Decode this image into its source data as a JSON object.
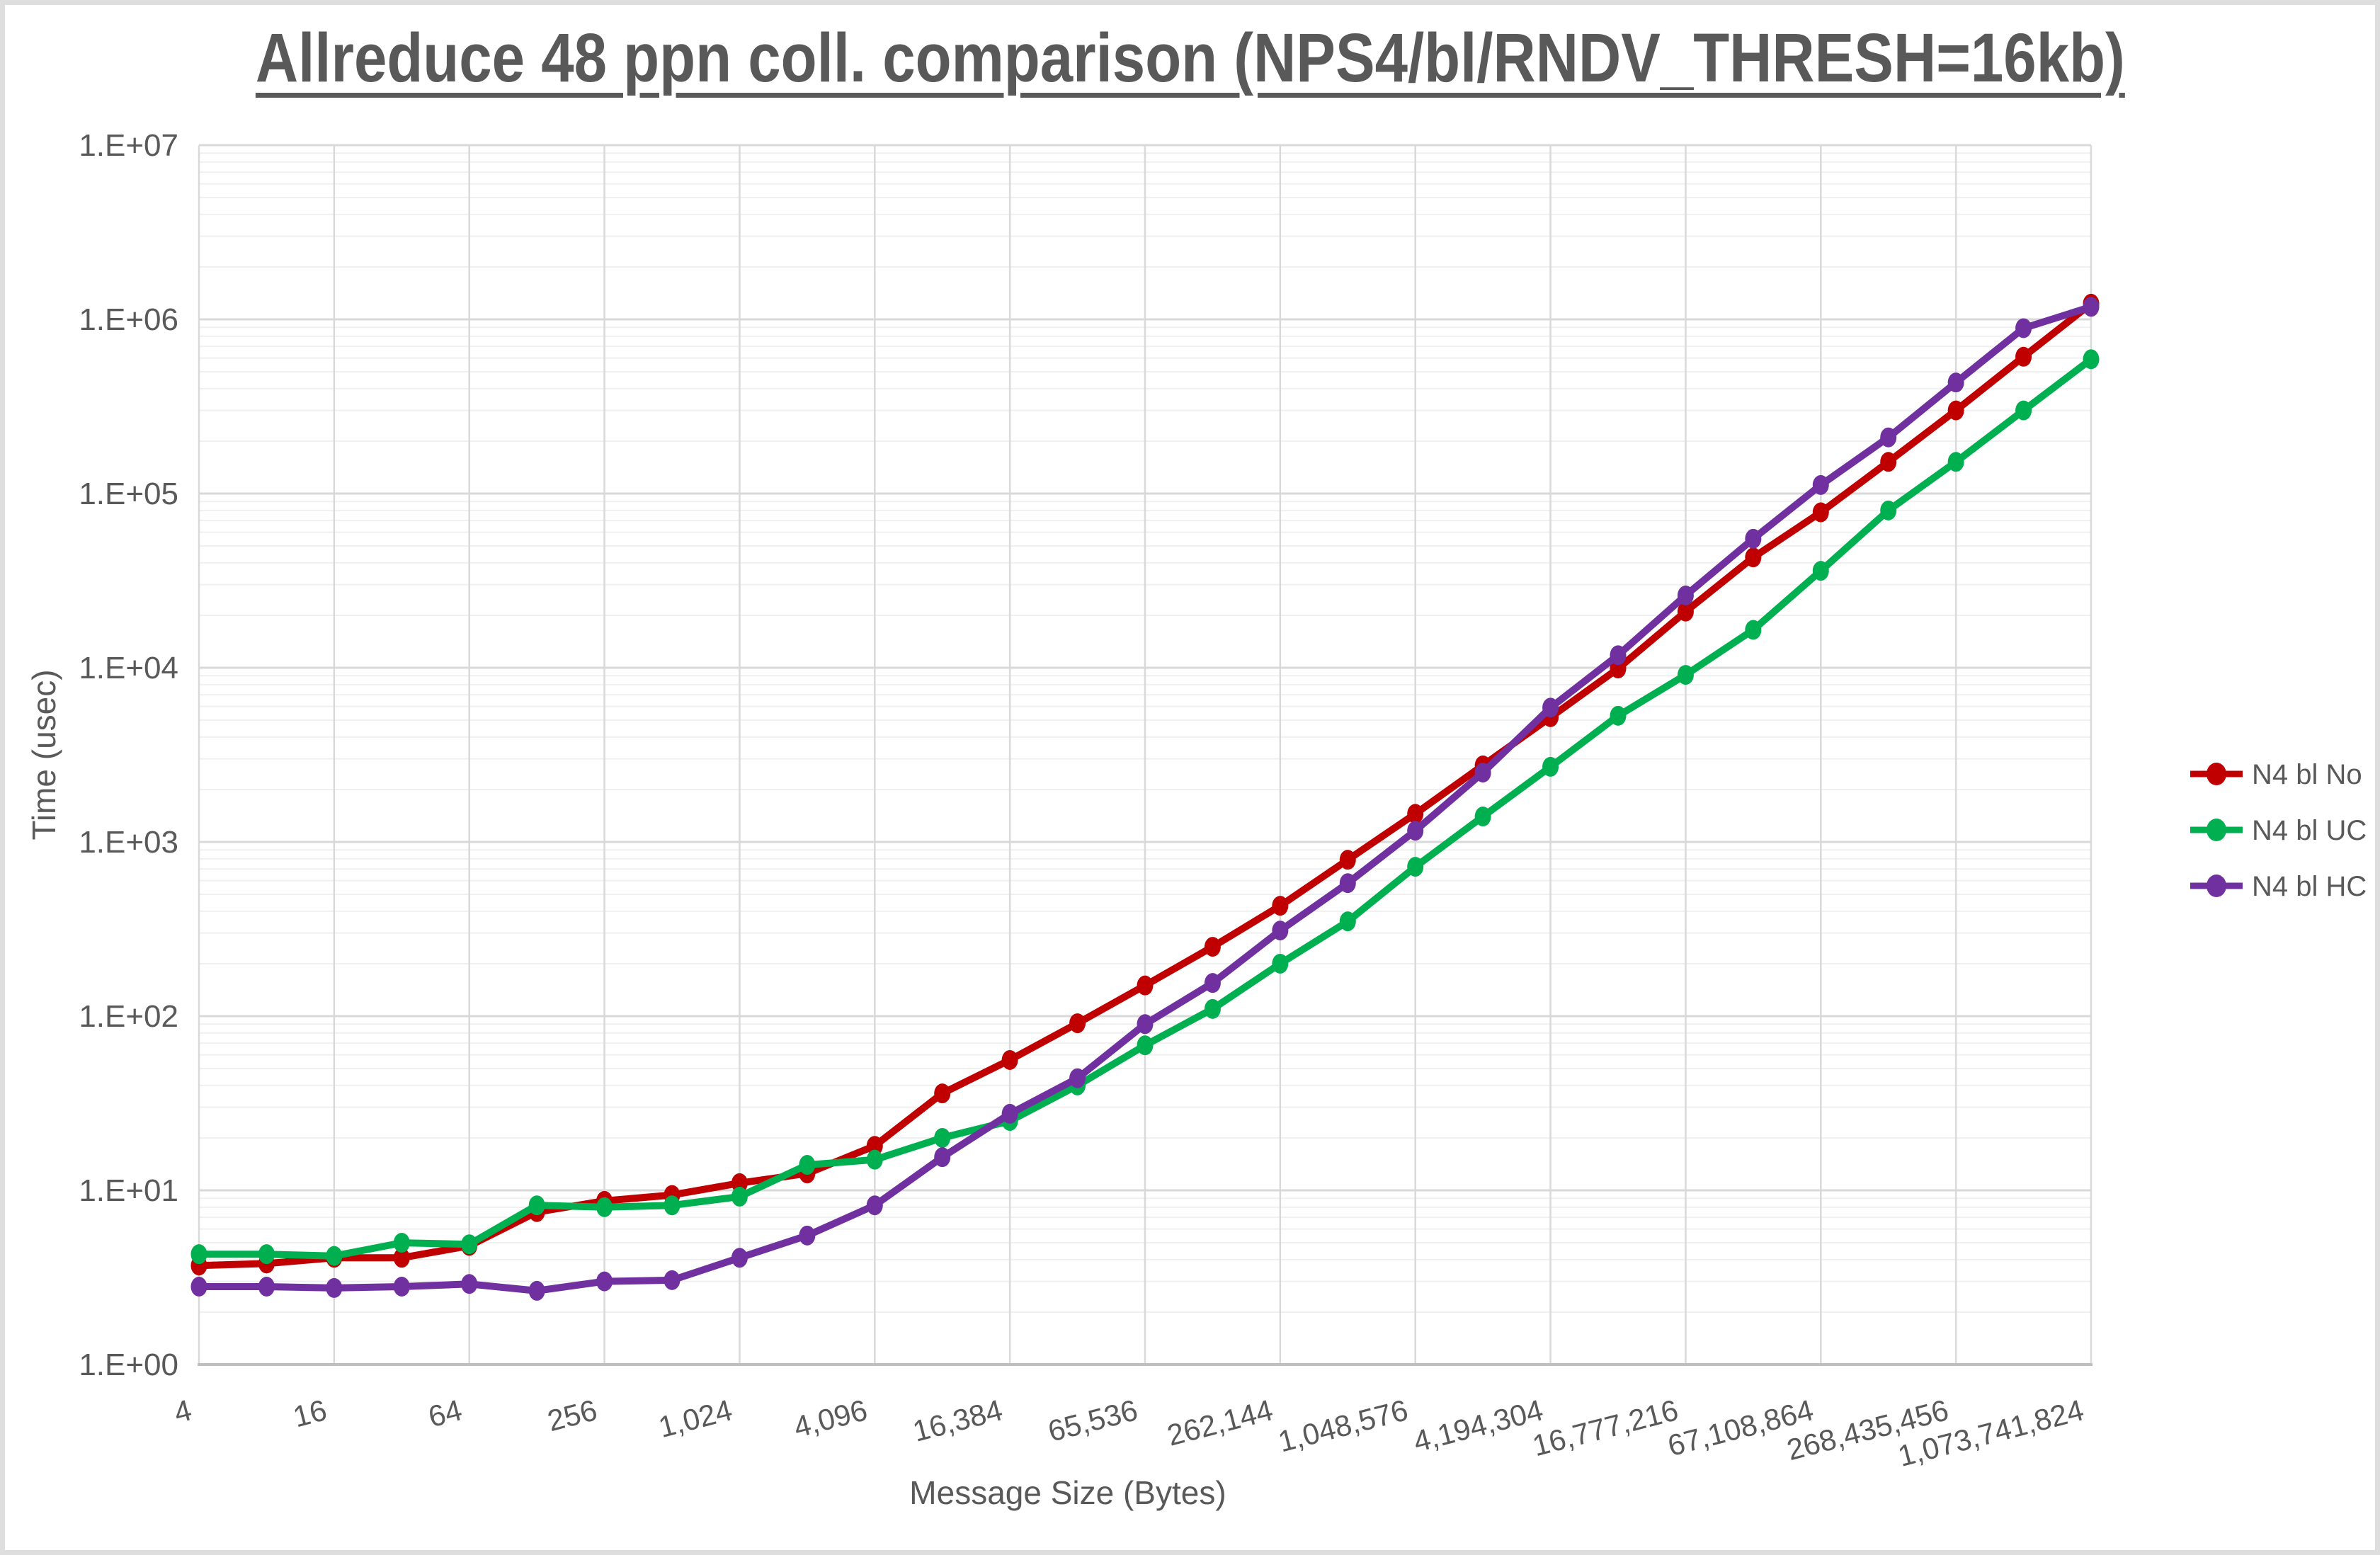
{
  "page": {
    "title": "Allreduce 48 ppn coll. comparison (NPS4/bl/RNDV_THRESH=16kb)"
  },
  "colors": {
    "text": "#595959",
    "axis_line": "#BFBFBF",
    "grid_major": "#D9D9D9",
    "grid_minor": "#F0F0F0",
    "frame": "#DEDEDE",
    "background": "#FFFFFF"
  },
  "chart_data": {
    "type": "line",
    "title": "Allreduce 48 ppn coll. comparison (NPS4/bl/RNDV_THRESH=16kb)",
    "xlabel": "Message Size (Bytes)",
    "ylabel": "Time (usec)",
    "x_scale": "log2",
    "y_scale": "log10",
    "xlim": [
      4,
      1073741824
    ],
    "ylim": [
      1,
      10000000
    ],
    "grid": "major-and-minor-horizontal, major-vertical",
    "legend_position": "right",
    "x": [
      4,
      8,
      16,
      32,
      64,
      128,
      256,
      512,
      1024,
      2048,
      4096,
      8192,
      16384,
      32768,
      65536,
      131072,
      262144,
      524288,
      1048576,
      2097152,
      4194304,
      8388608,
      16777216,
      33554432,
      67108864,
      134217728,
      268435456,
      536870912,
      1073741824
    ],
    "x_tick_labels": [
      "4",
      "16",
      "64",
      "256",
      "1,024",
      "4,096",
      "16,384",
      "65,536",
      "262,144",
      "1,048,576",
      "4,194,304",
      "16,777,216",
      "67,108,864",
      "268,435,456",
      "1,073,741,824"
    ],
    "y_tick_labels": [
      "1.E+00",
      "1.E+01",
      "1.E+02",
      "1.E+03",
      "1.E+04",
      "1.E+05",
      "1.E+06",
      "1.E+07"
    ],
    "series": [
      {
        "name": "N4 bl No",
        "color": "#C00000",
        "values": [
          3.7,
          3.8,
          4.1,
          4.1,
          4.8,
          7.5,
          8.7,
          9.4,
          11,
          12.5,
          18,
          36,
          56,
          91,
          150,
          250,
          430,
          790,
          1450,
          2750,
          5200,
          9900,
          21000,
          43000,
          78000,
          152000,
          300000,
          610000,
          1230000
        ]
      },
      {
        "name": "N4 bl UC",
        "color": "#00B050",
        "values": [
          4.3,
          4.3,
          4.2,
          5.0,
          4.9,
          8.2,
          8.0,
          8.2,
          9.2,
          14,
          15,
          20,
          25,
          40,
          68,
          110,
          200,
          350,
          720,
          1400,
          2700,
          5300,
          9100,
          16500,
          36000,
          80000,
          152000,
          300000,
          590000
        ]
      },
      {
        "name": "N4 bl HC",
        "color": "#7030A0",
        "values": [
          2.8,
          2.8,
          2.75,
          2.8,
          2.9,
          2.65,
          3.0,
          3.05,
          4.1,
          5.5,
          8.2,
          15.5,
          27.5,
          44,
          90,
          155,
          310,
          580,
          1160,
          2500,
          5900,
          11800,
          26000,
          55000,
          112000,
          210000,
          434000,
          890000,
          1180000
        ]
      }
    ]
  }
}
